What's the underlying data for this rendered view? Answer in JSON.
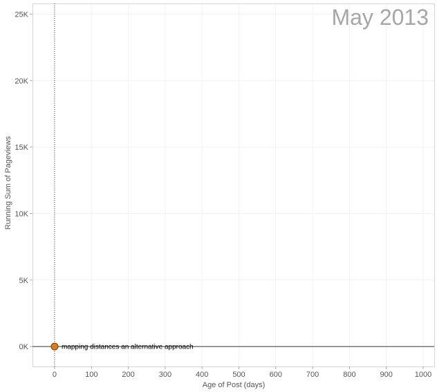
{
  "chart_data": {
    "type": "scatter",
    "period_label": "May 2013",
    "xlabel": "Age of Post (days)",
    "ylabel": "Running Sum of Pageviews",
    "xlim": [
      -60,
      1030
    ],
    "ylim": [
      -1500,
      25800
    ],
    "x_ticks": [
      0,
      100,
      200,
      300,
      400,
      500,
      600,
      700,
      800,
      900,
      1000
    ],
    "x_tick_labels": [
      "0",
      "100",
      "200",
      "300",
      "400",
      "500",
      "600",
      "700",
      "800",
      "900",
      "1000"
    ],
    "y_ticks": [
      0,
      5000,
      10000,
      15000,
      20000,
      25000
    ],
    "y_tick_labels": [
      "0K",
      "5K",
      "10K",
      "15K",
      "20K",
      "25K"
    ],
    "grid": true,
    "points": [
      {
        "x": 0,
        "y": 0,
        "label": "mapping distances an alternative approach",
        "color": "#e07b1a"
      }
    ],
    "reference_lines": {
      "x_zero": true,
      "y_zero": true
    }
  }
}
